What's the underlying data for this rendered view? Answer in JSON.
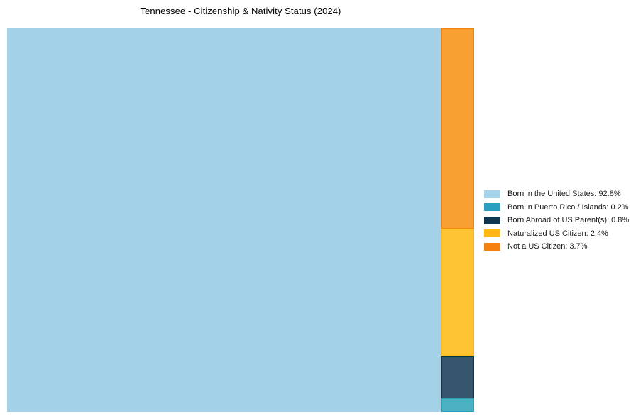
{
  "title": "Tennessee - Citizenship & Nativity Status (2024)",
  "chart_data": {
    "type": "treemap",
    "title": "Tennessee - Citizenship & Nativity Status (2024)",
    "unit": "%",
    "legend_position": "right",
    "layout_hint": "single large tile on left for majority value; remaining values stacked top-to-bottom in a narrow right column (largest at top)",
    "items": [
      {
        "label": "Born in the United States",
        "value": 92.8,
        "legend_label": "Born in the United States: 92.8%",
        "tile_color": "#a3d2e8",
        "swatch_color": "#a4d3ea",
        "border_color": "#a3d2e8"
      },
      {
        "label": "Born in Puerto Rico / Islands",
        "value": 0.2,
        "legend_label": "Born in Puerto Rico / Islands: 0.2%",
        "tile_color": "#4bb2c3",
        "swatch_color": "#2b9fbf",
        "border_color": "#2b9fbf"
      },
      {
        "label": "Born Abroad of US Parent(s)",
        "value": 0.8,
        "legend_label": "Born Abroad of US Parent(s): 0.8%",
        "tile_color": "#35566c",
        "swatch_color": "#10354f",
        "border_color": "#10354f"
      },
      {
        "label": "Naturalized US Citizen",
        "value": 2.4,
        "legend_label": "Naturalized US Citizen: 2.4%",
        "tile_color": "#fec434",
        "swatch_color": "#fdb914",
        "border_color": "#fdb914"
      },
      {
        "label": "Not a US Citizen",
        "value": 3.7,
        "legend_label": "Not a US Citizen: 3.7%",
        "tile_color": "#f9a033",
        "swatch_color": "#f5820d",
        "border_color": "#f5820d"
      }
    ]
  }
}
